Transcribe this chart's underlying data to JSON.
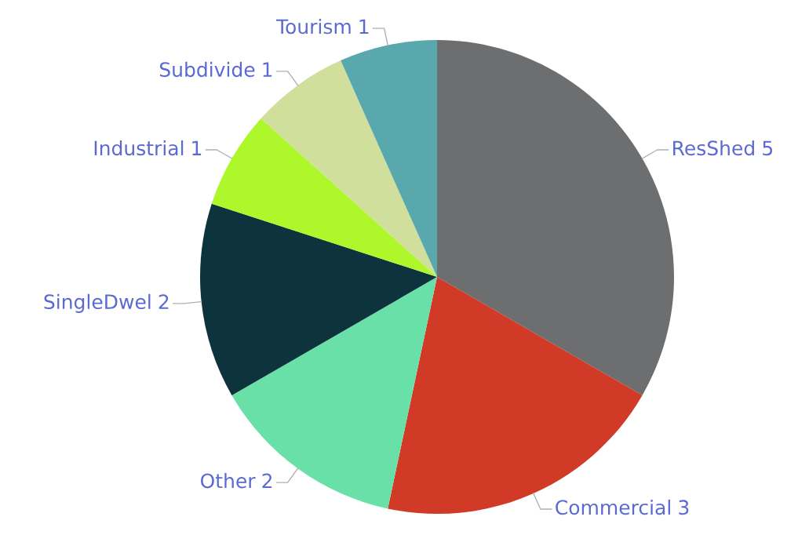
{
  "chart_data": {
    "type": "pie",
    "categories": [
      "ResShed",
      "Commercial",
      "Other",
      "SingleDwel",
      "Industrial",
      "Subdivide",
      "Tourism"
    ],
    "values": [
      5,
      3,
      2,
      2,
      1,
      1,
      1
    ],
    "colors": [
      "#6d6e70",
      "#d03a27",
      "#69e0a8",
      "#0d333d",
      "#adf72a",
      "#d0df9b",
      "#58a8ae"
    ],
    "data_labels": true
  }
}
